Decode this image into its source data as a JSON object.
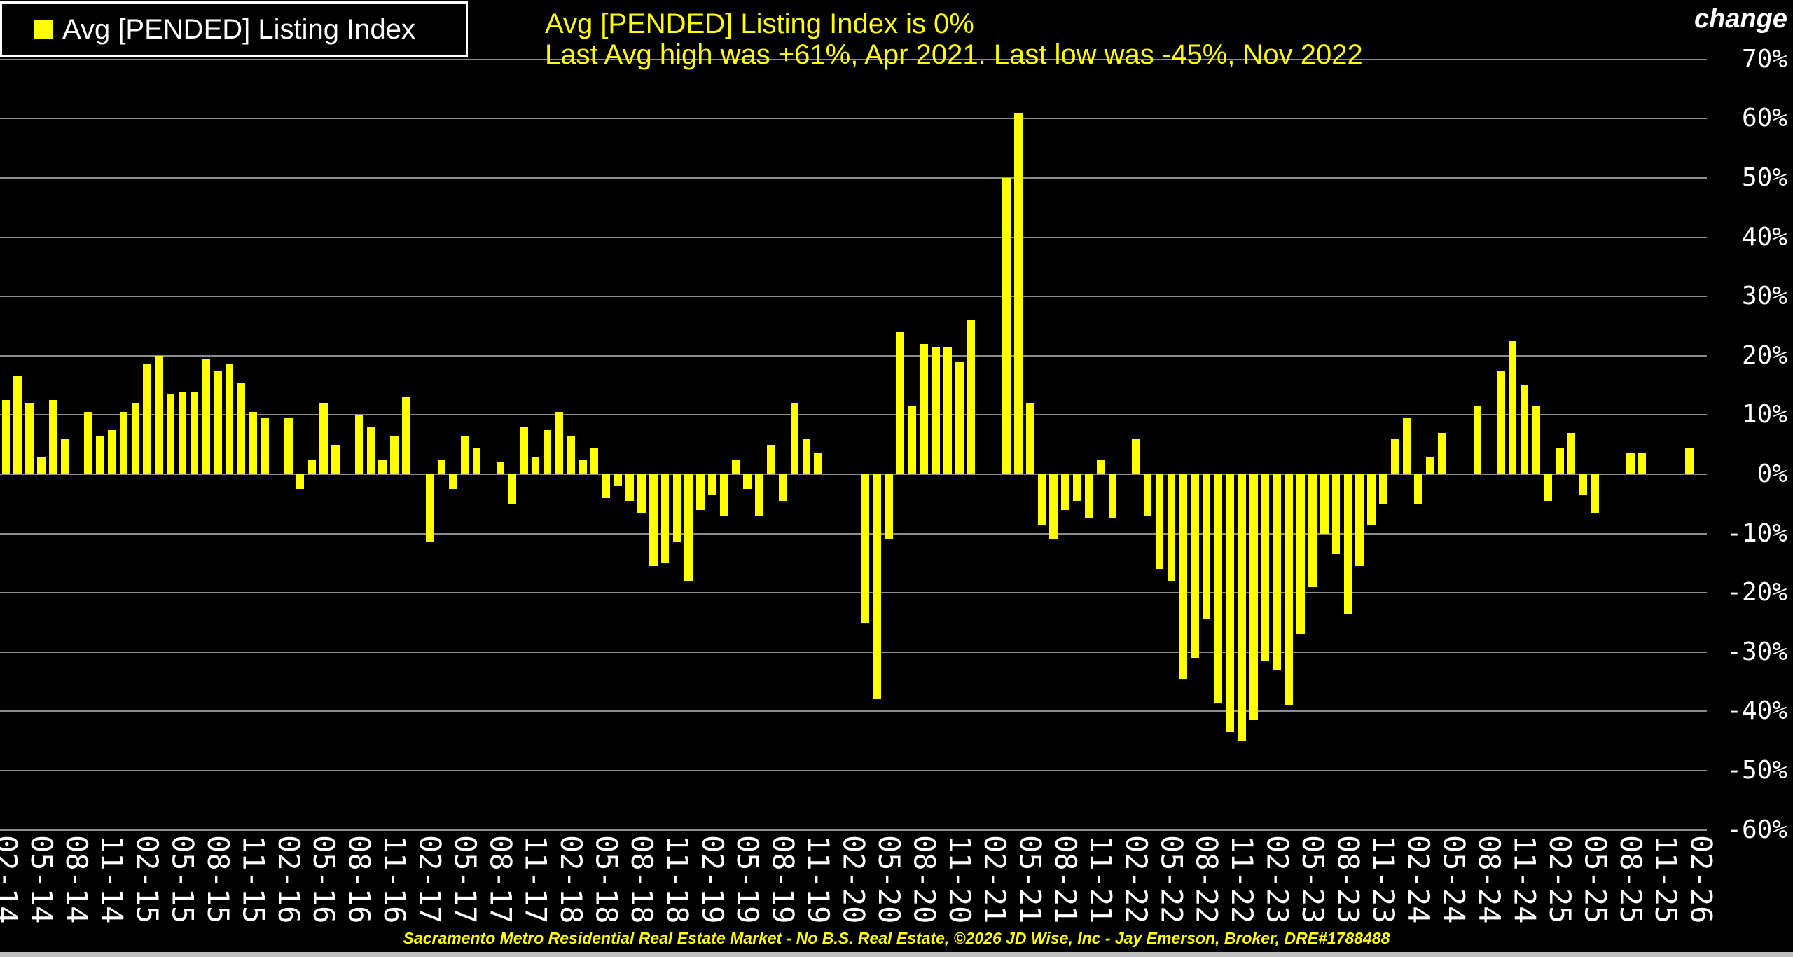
{
  "legend": {
    "label": "Avg [PENDED] Listing Index",
    "swatch_color": "#ffff00"
  },
  "annotations": {
    "line1": "Avg [PENDED] Listing Index is 0%",
    "line2": "Last Avg high was +61%, Apr 2021. Last low was -45%, Nov 2022"
  },
  "y_axis": {
    "title": "change",
    "unit": "%",
    "max": 70,
    "min": -60,
    "step": 10
  },
  "footer": "Sacramento Metro Residential Real Estate Market - No B.S. Real Estate, ©2026 JD Wise, Inc - Jay Emerson, Broker, DRE#1788488",
  "colors": {
    "background": "#000000",
    "bar": "#ffff00",
    "grid": "#8c8c8c",
    "axis_text": "#ffffff",
    "annotation_text": "#ffff00",
    "bottom_strip": "#c0c0c0"
  },
  "chart_data": {
    "type": "bar",
    "title": "Avg [PENDED] Listing Index",
    "xlabel": "",
    "ylabel": "change",
    "ylim": [
      -60,
      70
    ],
    "grid": true,
    "legend_position": "top-left",
    "x_tick_every_n_months": 3,
    "categories": [
      "02-14",
      "03-14",
      "04-14",
      "05-14",
      "06-14",
      "07-14",
      "08-14",
      "09-14",
      "10-14",
      "11-14",
      "12-14",
      "01-15",
      "02-15",
      "03-15",
      "04-15",
      "05-15",
      "06-15",
      "07-15",
      "08-15",
      "09-15",
      "10-15",
      "11-15",
      "12-15",
      "01-16",
      "02-16",
      "03-16",
      "04-16",
      "05-16",
      "06-16",
      "07-16",
      "08-16",
      "09-16",
      "10-16",
      "11-16",
      "12-16",
      "01-17",
      "02-17",
      "03-17",
      "04-17",
      "05-17",
      "06-17",
      "07-17",
      "08-17",
      "09-17",
      "10-17",
      "11-17",
      "12-17",
      "01-18",
      "02-18",
      "03-18",
      "04-18",
      "05-18",
      "06-18",
      "07-18",
      "08-18",
      "09-18",
      "10-18",
      "11-18",
      "12-18",
      "01-19",
      "02-19",
      "03-19",
      "04-19",
      "05-19",
      "06-19",
      "07-19",
      "08-19",
      "09-19",
      "10-19",
      "11-19",
      "12-19",
      "01-20",
      "02-20",
      "03-20",
      "04-20",
      "05-20",
      "06-20",
      "07-20",
      "08-20",
      "09-20",
      "10-20",
      "11-20",
      "12-20",
      "01-21",
      "02-21",
      "03-21",
      "04-21",
      "05-21",
      "06-21",
      "07-21",
      "08-21",
      "09-21",
      "10-21",
      "11-21",
      "12-21",
      "01-22",
      "02-22",
      "03-22",
      "04-22",
      "05-22",
      "06-22",
      "07-22",
      "08-22",
      "09-22",
      "10-22",
      "11-22",
      "12-22",
      "01-23",
      "02-23",
      "03-23",
      "04-23",
      "05-23",
      "06-23",
      "07-23",
      "08-23",
      "09-23",
      "10-23",
      "11-23",
      "12-23",
      "01-24",
      "02-24",
      "03-24",
      "04-24",
      "05-24",
      "06-24",
      "07-24",
      "08-24",
      "09-24",
      "10-24",
      "11-24",
      "12-24",
      "01-25",
      "02-25",
      "03-25",
      "04-25",
      "05-25",
      "06-25",
      "07-25",
      "08-25",
      "09-25",
      "10-25",
      "11-25",
      "12-25",
      "01-26",
      "02-26"
    ],
    "values": [
      12.5,
      16.5,
      12,
      3,
      12.5,
      6,
      0,
      10.5,
      6.5,
      7.5,
      10.5,
      12,
      18.5,
      20,
      13.5,
      14,
      14,
      19.5,
      17.5,
      18.5,
      15.5,
      10.5,
      9.5,
      0,
      9.5,
      -2.5,
      2.5,
      12,
      5,
      0,
      10,
      8,
      2.5,
      6.5,
      13,
      0,
      -11.5,
      2.5,
      -2.5,
      6.5,
      4.5,
      0,
      2,
      -5,
      8,
      3,
      7.5,
      10.5,
      6.5,
      2.5,
      4.5,
      -4,
      -2,
      -4.5,
      -6.5,
      -15.5,
      -15,
      -11.5,
      -18,
      -6,
      -3.5,
      -7,
      2.5,
      -2.5,
      -7,
      5,
      -4.5,
      12,
      6,
      3.5,
      0,
      0,
      0,
      -25,
      -38,
      -11,
      24,
      11.5,
      22,
      21.5,
      21.5,
      19,
      26,
      0,
      0,
      50,
      61,
      12,
      -8.5,
      -11,
      -6,
      -4.5,
      -7.5,
      2.5,
      -7.5,
      0,
      6,
      -7,
      -16,
      -18,
      -34.5,
      -31,
      -24.5,
      -38.5,
      -43.5,
      -45,
      -41.5,
      -31.5,
      -33,
      -39,
      -27,
      -19,
      -10,
      -13.5,
      -23.5,
      -15.5,
      -8.5,
      -5,
      6,
      9.5,
      -5,
      3,
      7,
      0,
      0,
      11.5,
      0,
      17.5,
      22.5,
      15,
      11.5,
      -4.5,
      4.5,
      7,
      -3.5,
      -6.5,
      0,
      0,
      3.5,
      3.5,
      0,
      0,
      0,
      4.5,
      0
    ]
  }
}
